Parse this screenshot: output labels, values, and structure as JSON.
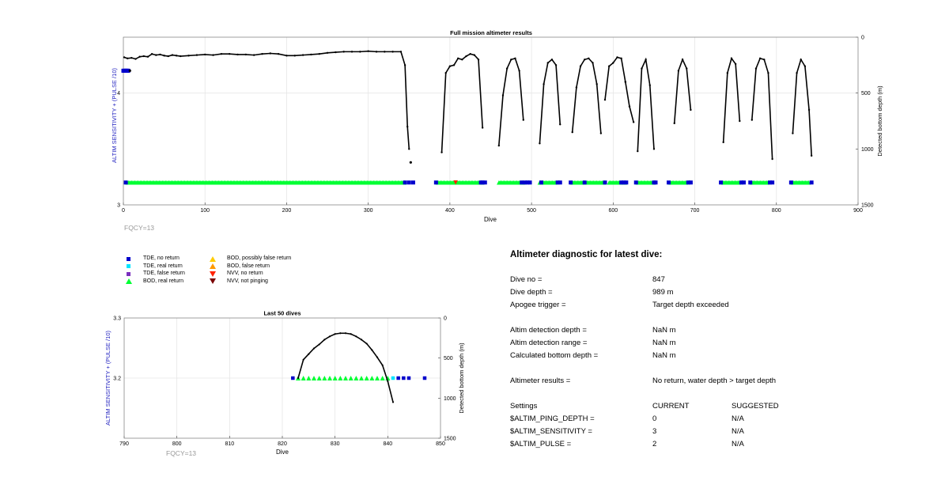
{
  "colors": {
    "tde_no_return": "#0000cc",
    "tde_real_return": "#00e5ff",
    "tde_false_return": "#7b2fbe",
    "bod_real_return": "#00ff33",
    "bod_possibly_false": "#ffcc00",
    "bod_false": "#ff9900",
    "nvv_no_return": "#ff2200",
    "nvv_not_pinging": "#7a0000",
    "profile": "#000000",
    "left_axis_label": "#1f1fbf",
    "fqcy": "#999999"
  },
  "chart_data": [
    {
      "type": "line",
      "title": "Full mission altimeter results",
      "xlabel": "Dive",
      "ylabel_left": "ALTIM SENSITIVITY + (PULSE /10)",
      "ylabel_right": "Detected bottom depth (m)",
      "xlim": [
        0,
        900
      ],
      "ylim_left": [
        3,
        4.5
      ],
      "ylim_right_reversed": [
        0,
        1500
      ],
      "x_ticks": [
        "0",
        "100",
        "200",
        "300",
        "400",
        "500",
        "600",
        "700",
        "800",
        "900"
      ],
      "y_left_ticks": [
        "3",
        "4"
      ],
      "y_right_ticks": [
        "0",
        "500",
        "1000",
        "1500"
      ],
      "annotation": "FQCY=13",
      "grid": true,
      "depth_profile": [
        {
          "x": [
            1,
            5,
            10,
            15,
            20,
            25,
            30,
            35,
            40,
            45,
            50,
            55,
            60,
            65,
            70,
            80,
            90,
            100,
            110,
            120,
            130,
            140,
            150,
            160,
            170,
            180,
            190,
            200,
            210,
            220,
            230,
            240,
            250,
            260,
            270,
            280,
            290,
            300,
            310,
            320,
            330,
            340,
            345,
            348,
            350
          ],
          "y": [
            180,
            190,
            185,
            195,
            175,
            170,
            175,
            150,
            160,
            155,
            165,
            170,
            160,
            165,
            170,
            165,
            160,
            155,
            160,
            150,
            150,
            155,
            155,
            160,
            150,
            145,
            150,
            165,
            165,
            160,
            155,
            150,
            140,
            135,
            130,
            130,
            130,
            125,
            130,
            130,
            130,
            130,
            250,
            800,
            1000
          ]
        },
        {
          "x": [
            390,
            395,
            400,
            405,
            410,
            415,
            420,
            425,
            430,
            435,
            440
          ],
          "y": [
            1030,
            320,
            260,
            250,
            190,
            200,
            170,
            150,
            160,
            200,
            810
          ]
        },
        {
          "x": [
            460,
            465,
            470,
            475,
            480,
            485,
            490
          ],
          "y": [
            970,
            520,
            280,
            200,
            190,
            300,
            740
          ]
        },
        {
          "x": [
            510,
            515,
            520,
            525,
            530,
            535
          ],
          "y": [
            950,
            420,
            230,
            200,
            250,
            780
          ]
        },
        {
          "x": [
            550,
            555,
            560,
            565,
            570,
            575,
            580,
            585
          ],
          "y": [
            850,
            450,
            260,
            200,
            190,
            230,
            420,
            860
          ]
        },
        {
          "x": [
            590,
            595,
            600,
            605,
            610,
            615
          ],
          "y": [
            560,
            260,
            230,
            180,
            190,
            400
          ]
        },
        {
          "x": [
            615,
            620,
            625
          ],
          "y": [
            400,
            620,
            760
          ]
        },
        {
          "x": [
            630,
            635,
            640,
            645,
            650
          ],
          "y": [
            1020,
            280,
            200,
            430,
            1000
          ]
        },
        {
          "x": [
            675,
            680,
            685,
            690,
            695
          ],
          "y": [
            770,
            300,
            200,
            280,
            650
          ]
        },
        {
          "x": [
            735,
            740,
            745,
            750,
            755
          ],
          "y": [
            940,
            320,
            190,
            240,
            750
          ]
        },
        {
          "x": [
            770,
            775,
            780,
            785,
            790,
            795
          ],
          "y": [
            740,
            280,
            190,
            200,
            320,
            1090
          ]
        },
        {
          "x": [
            820,
            825,
            830,
            835,
            840,
            843
          ],
          "y": [
            860,
            320,
            200,
            260,
            650,
            1060
          ]
        }
      ],
      "isolated_points": [
        {
          "x": 8,
          "y": 300
        },
        {
          "x": 352,
          "y": 1120
        }
      ],
      "markers": {
        "bod_real_return": {
          "y": 3.2,
          "segments": [
            [
              5,
              345
            ],
            [
              385,
              440
            ],
            [
              460,
              490
            ],
            [
              510,
              530
            ],
            [
              550,
              590
            ],
            [
              595,
              615
            ],
            [
              630,
              650
            ],
            [
              670,
              690
            ],
            [
              735,
              755
            ],
            [
              770,
              790
            ],
            [
              820,
              840
            ]
          ]
        },
        "tde_no_return": {
          "y": 3.2,
          "x": [
            3,
            345,
            350,
            355,
            383,
            438,
            440,
            443,
            488,
            492,
            495,
            498,
            512,
            532,
            535,
            548,
            565,
            590,
            610,
            613,
            616,
            628,
            650,
            652,
            668,
            692,
            695,
            732,
            757,
            760,
            768,
            792,
            795,
            818,
            843
          ]
        },
        "nvv_no_return": {
          "y": 3.2,
          "x": [
            407
          ]
        },
        "tde_no_return_left": {
          "y": 4.2,
          "x": [
            0,
            1,
            2,
            3,
            4,
            5,
            6
          ]
        }
      }
    },
    {
      "type": "line",
      "title": "Last 50 dives",
      "xlabel": "Dive",
      "ylabel_left": "ALTIM SENSITIVITY + (PULSE /10)",
      "ylabel_right": "Detected bottom depth (m)",
      "xlim": [
        790,
        850
      ],
      "ylim_left": [
        3.1,
        3.3
      ],
      "ylim_right_reversed": [
        0,
        1500
      ],
      "x_ticks": [
        "790",
        "800",
        "810",
        "820",
        "830",
        "840",
        "850"
      ],
      "y_left_ticks": [
        "3.2",
        "3.3"
      ],
      "y_right_ticks": [
        "0",
        "500",
        "1000",
        "1500"
      ],
      "annotation": "FQCY=13",
      "grid": true,
      "depth_profile": {
        "x": [
          823,
          824,
          825,
          826,
          827,
          828,
          829,
          830,
          831,
          832,
          833,
          834,
          835,
          836,
          837,
          838,
          839,
          840,
          841
        ],
        "y": [
          750,
          520,
          450,
          380,
          330,
          270,
          230,
          200,
          190,
          190,
          200,
          230,
          270,
          320,
          400,
          490,
          590,
          790,
          1050
        ]
      },
      "markers": {
        "bod_real_return": {
          "y": 3.2,
          "x": [
            823,
            824,
            825,
            826,
            827,
            828,
            829,
            830,
            831,
            832,
            833,
            834,
            835,
            836,
            837,
            838,
            839,
            840
          ]
        },
        "tde_no_return": {
          "y": 3.2,
          "x": [
            822,
            842,
            843,
            844,
            847
          ]
        },
        "tde_real_return": {
          "y": 3.2,
          "x": [
            841
          ]
        }
      }
    }
  ],
  "legend": {
    "col1": [
      {
        "label": "TDE, no return",
        "color_key": "tde_no_return",
        "marker": "square"
      },
      {
        "label": "TDE, real return",
        "color_key": "tde_real_return",
        "marker": "square"
      },
      {
        "label": "TDE, false return",
        "color_key": "tde_false_return",
        "marker": "square"
      },
      {
        "label": "BOD, real return",
        "color_key": "bod_real_return",
        "marker": "triangle-up"
      }
    ],
    "col2": [
      {
        "label": "BOD, possibly false return",
        "color_key": "bod_possibly_false",
        "marker": "triangle-up"
      },
      {
        "label": "BOD, false return",
        "color_key": "bod_false",
        "marker": "triangle-up"
      },
      {
        "label": "NVV, no return",
        "color_key": "nvv_no_return",
        "marker": "triangle-down"
      },
      {
        "label": "NVV, not pinging",
        "color_key": "nvv_not_pinging",
        "marker": "triangle-down"
      }
    ]
  },
  "diagnostic": {
    "title": "Altimeter diagnostic for latest dive:",
    "rows": [
      {
        "k": "Dive no =",
        "v": "847",
        "s": ""
      },
      {
        "k": "Dive depth =",
        "v": "989 m",
        "s": ""
      },
      {
        "k": "Apogee trigger =",
        "v": "Target depth exceeded",
        "s": ""
      },
      {
        "k": "Altim detection depth =",
        "v": "NaN m",
        "s": ""
      },
      {
        "k": "Altim detection range =",
        "v": "NaN m",
        "s": ""
      },
      {
        "k": "Calculated bottom depth =",
        "v": "NaN m",
        "s": ""
      },
      {
        "k": "Altimeter results =",
        "v": "No return, water depth > target depth",
        "s": ""
      },
      {
        "k": "Settings",
        "v": "CURRENT",
        "s": "SUGGESTED"
      },
      {
        "k": "$ALTIM_PING_DEPTH =",
        "v": "0",
        "s": "N/A"
      },
      {
        "k": "$ALTIM_SENSITIVITY =",
        "v": "3",
        "s": "N/A"
      },
      {
        "k": "$ALTIM_PULSE =",
        "v": "2",
        "s": "N/A"
      }
    ]
  }
}
